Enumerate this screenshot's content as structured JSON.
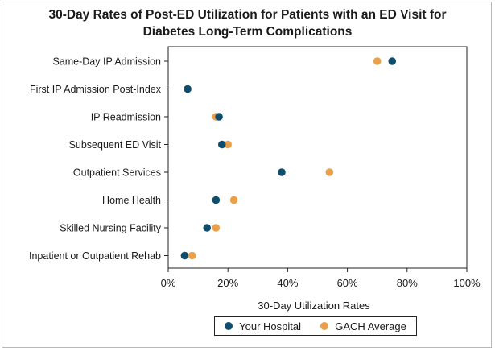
{
  "chart_data": {
    "type": "scatter",
    "title_line1": "30-Day Rates of Post-ED Utilization for Patients with an ED Visit for",
    "title_line2": "Diabetes Long-Term Complications",
    "xlabel": "30-Day Utilization Rates",
    "xlim": [
      0,
      100
    ],
    "x_ticks": [
      "0%",
      "20%",
      "40%",
      "60%",
      "80%",
      "100%"
    ],
    "x_tick_values": [
      0,
      20,
      40,
      60,
      80,
      100
    ],
    "categories": [
      "Same-Day IP Admission",
      "First IP Admission Post-Index",
      "IP Readmission",
      "Subsequent ED Visit",
      "Outpatient Services",
      "Home Health",
      "Skilled Nursing Facility",
      "Inpatient or Outpatient Rehab"
    ],
    "series": [
      {
        "name": "GACH Average",
        "color": "#e8a04a",
        "values": [
          70,
          null,
          16,
          20,
          54,
          22,
          16,
          8
        ]
      },
      {
        "name": "Your Hospital",
        "color": "#0e4d6b",
        "values": [
          75,
          6.5,
          17,
          18,
          38,
          16,
          13,
          5.5
        ]
      }
    ],
    "legend": [
      "Your Hospital",
      "GACH Average"
    ],
    "legend_position": "bottom"
  }
}
